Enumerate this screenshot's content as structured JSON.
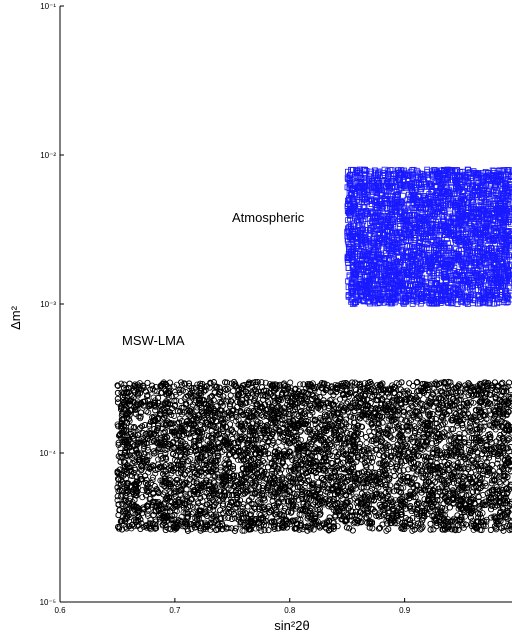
{
  "chart_data": {
    "type": "scatter",
    "title": "",
    "xlabel": "sin²2θ",
    "ylabel": "Δm²",
    "xlim": [
      0.6,
      1.0
    ],
    "ylim": [
      1e-05,
      0.1
    ],
    "yscale": "log",
    "grid": false,
    "x_ticks": [
      {
        "value": 0.6,
        "label": "0.6"
      },
      {
        "value": 0.7,
        "label": "0.7"
      },
      {
        "value": 0.8,
        "label": "0.8"
      },
      {
        "value": 0.9,
        "label": "0.9"
      }
    ],
    "y_ticks": [
      {
        "value": 1e-05,
        "label": "10⁻⁵"
      },
      {
        "value": 0.0001,
        "label": "10⁻⁴"
      },
      {
        "value": 0.001,
        "label": "10⁻³"
      },
      {
        "value": 0.01,
        "label": "10⁻²"
      },
      {
        "value": 0.1,
        "label": "10⁻¹"
      }
    ],
    "regions": [
      {
        "label": "Atmospheric",
        "color": "#1a1aff",
        "marker": "square",
        "x_range": [
          0.85,
          1.0
        ],
        "y_range": [
          0.001,
          0.008
        ],
        "density": "dense"
      },
      {
        "label": "MSW-LMA",
        "color": "#000000",
        "marker": "circle",
        "x_range": [
          0.65,
          1.0
        ],
        "y_range": [
          3e-05,
          0.0003
        ],
        "density": "dense"
      }
    ]
  }
}
